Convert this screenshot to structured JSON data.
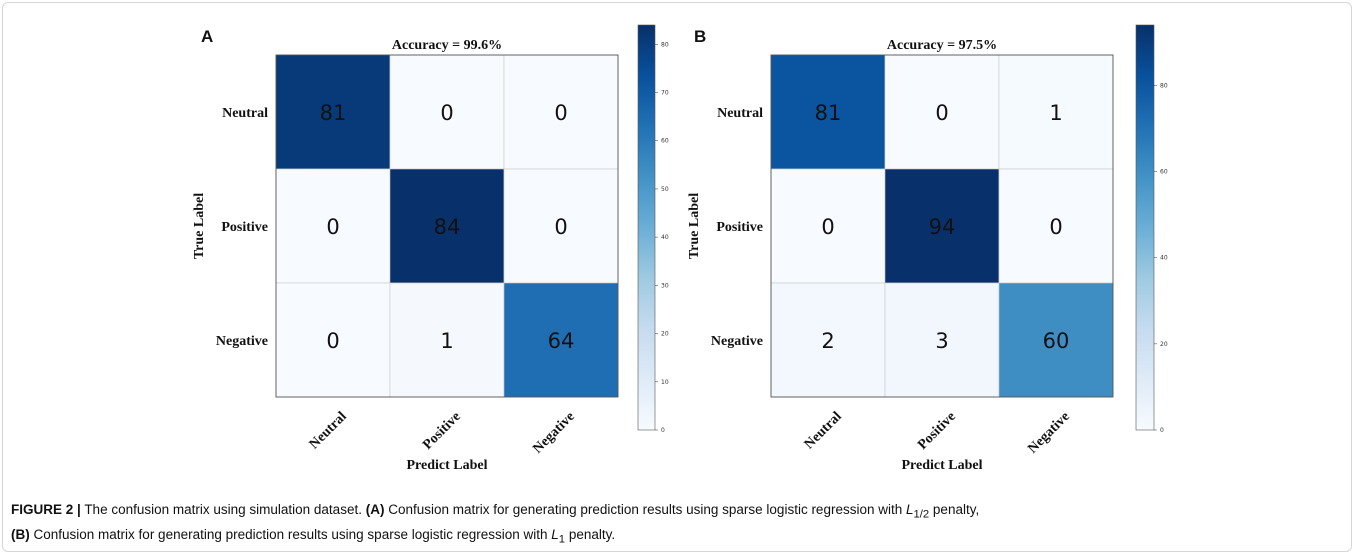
{
  "figure": {
    "caption": {
      "label": "FIGURE 2 |",
      "intro": "The confusion matrix using simulation dataset.",
      "part_a_tag": "(A)",
      "part_a_text_1": "Confusion matrix for generating prediction results using sparse logistic regression with",
      "part_a_math": "L",
      "part_a_sub": "1/2",
      "part_a_text_2": "penalty,",
      "part_b_tag": "(B)",
      "part_b_text_1": "Confusion matrix for generating prediction results using sparse logistic regression with",
      "part_b_math": "L",
      "part_b_sub": "1",
      "part_b_text_2": "penalty."
    }
  },
  "chart_data": [
    {
      "type": "heatmap",
      "panel": "A",
      "title": "Accuracy = 99.6%",
      "xlabel": "Predict Label",
      "ylabel": "True Label",
      "categories": [
        "Neutral",
        "Positive",
        "Negative"
      ],
      "matrix": [
        [
          81,
          0,
          0
        ],
        [
          0,
          84,
          0
        ],
        [
          0,
          1,
          64
        ]
      ],
      "colormap": "Blues",
      "colorbar": {
        "min": 0,
        "max": 84,
        "ticks": [
          0,
          10,
          20,
          30,
          40,
          50,
          60,
          70,
          80
        ]
      }
    },
    {
      "type": "heatmap",
      "panel": "B",
      "title": "Accuracy = 97.5%",
      "xlabel": "Predict Label",
      "ylabel": "True Label",
      "categories": [
        "Neutral",
        "Positive",
        "Negative"
      ],
      "matrix": [
        [
          81,
          0,
          1
        ],
        [
          0,
          94,
          0
        ],
        [
          2,
          3,
          60
        ]
      ],
      "colormap": "Blues",
      "colorbar": {
        "min": 0,
        "max": 94,
        "ticks": [
          0,
          20,
          40,
          60,
          80
        ]
      }
    }
  ]
}
